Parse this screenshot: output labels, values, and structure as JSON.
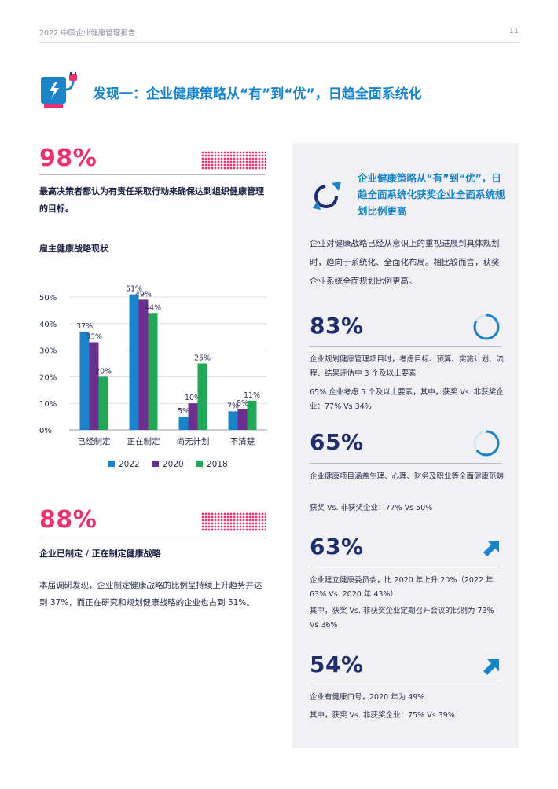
{
  "header": {
    "report_title": "2022 中国企业健康管理报告",
    "page_number": "11"
  },
  "title": "发现一：企业健康策略从“有”到“优”，日趋全面系统化",
  "left": {
    "stat1": {
      "value": "98%",
      "description": "最高决策者都认为有责任采取行动来确保达到组织健康管理的目标。"
    },
    "chart_heading": "雇主健康战略现状",
    "stat2": {
      "value": "88%",
      "heading": "企业已制定 / 正在制定健康战略",
      "body": "本届调研发现，企业制定健康战略的比例呈持续上升趋势并达到 37%，而正在研究和规划健康战略的企业也占到 51%。"
    }
  },
  "chart_data": {
    "type": "bar",
    "categories": [
      "已经制定",
      "正在制定",
      "尚无计划",
      "不清楚"
    ],
    "series": [
      {
        "name": "2022",
        "values": [
          37,
          51,
          5,
          7
        ],
        "color": "#1b84c8"
      },
      {
        "name": "2020",
        "values": [
          33,
          49,
          10,
          8
        ],
        "color": "#6a2f8f"
      },
      {
        "name": "2018",
        "values": [
          20,
          44,
          25,
          11
        ],
        "color": "#1fa855"
      }
    ],
    "value_labels": [
      [
        "37%",
        "51%",
        "5%",
        "7%"
      ],
      [
        "33%",
        "49%",
        "10%",
        "8%"
      ],
      [
        "20%",
        "44%",
        "25%",
        "11%"
      ]
    ],
    "ylim": [
      0,
      50
    ],
    "yticks": [
      "0%",
      "10%",
      "20%",
      "30%",
      "40%",
      "50%"
    ],
    "grid": true,
    "legend": "bottom"
  },
  "panel": {
    "title": "企业健康策略从“有”到“优”，日趋全面系统化获奖企业全面系统规划比例更高",
    "intro": "企业对健康战略已经从意识上的重视进展到具体规划时，趋向于系统化、全面化布局。相比较而言，获奖企业系统全面规划比例更高。",
    "stats": [
      {
        "value": "83%",
        "icon": "progress-ring-icon",
        "progress": 0.83,
        "text1": "企业规划健康管理项目时，考虑目标、预算、实施计划、流程、结果评估中 3 个及以上要素",
        "text2": "65% 企业考虑 5 个及以上要素，其中，获奖 Vs. 非获奖企业：77% Vs 34%"
      },
      {
        "value": "65%",
        "icon": "progress-ring-icon",
        "progress": 0.65,
        "text1": "企业健康项目涵盖生理、心理、财务及职业等全面健康范畴",
        "text2": "获奖 Vs. 非获奖企业：77% Vs 50%"
      },
      {
        "value": "63%",
        "icon": "arrow-up-right-icon",
        "text1": "企业建立健康委员会，比 2020 年上升 20%（2022 年 63% Vs. 2020 年 43%）",
        "text2": "其中，获奖 Vs. 非获奖企业定期召开会议的比例为 73% Vs 36%"
      },
      {
        "value": "54%",
        "icon": "arrow-up-right-icon",
        "text1": "企业有健康口号，2020 年为 49%",
        "text2": "其中，获奖 Vs. 非获奖企业：75% Vs 39%"
      }
    ]
  },
  "colors": {
    "pink": "#e8336f",
    "blue": "#1b84c8",
    "navy": "#1f2f6e",
    "panel_bg": "#f1f1f4"
  }
}
